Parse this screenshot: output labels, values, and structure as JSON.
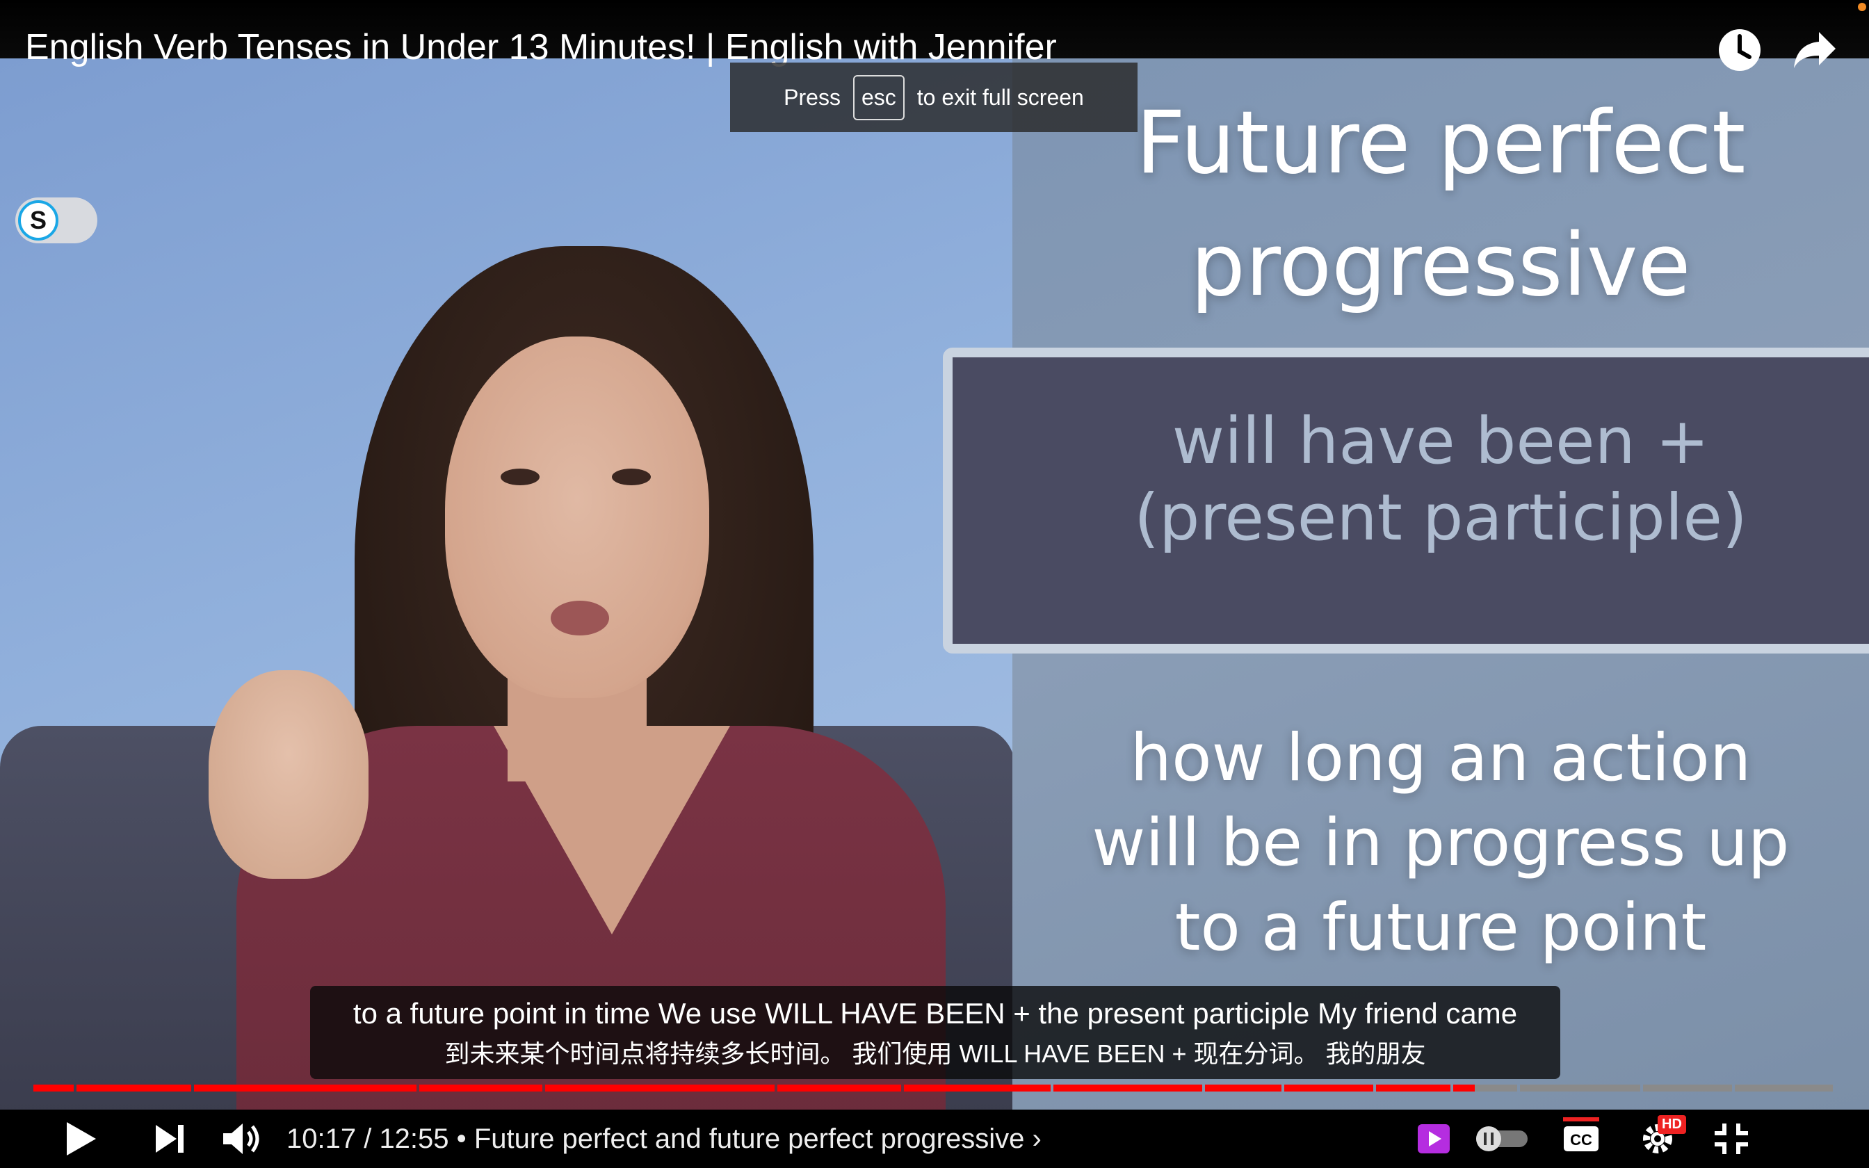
{
  "window": {
    "video_title": "English Verb Tenses in Under 13 Minutes! | English with Jennifer"
  },
  "fullscreen_notice": {
    "press": "Press",
    "key": "esc",
    "rest": "to exit full screen"
  },
  "slide": {
    "title_line1": "Future perfect",
    "title_line2": "progressive",
    "formula_line1": "will have been +",
    "formula_line2": "(present participle)",
    "desc_line1": "how long an action",
    "desc_line2": "will be in progress up",
    "desc_line3": "to a future point"
  },
  "extension_toggle": {
    "letter": "S"
  },
  "subtitles": {
    "english": "to a future point in time We use WILL HAVE BEEN + the present participle My friend came",
    "chinese": "到未来某个时间点将持续多长时间。 我们使用 WILL HAVE BEEN + 现在分词。 我的朋友"
  },
  "player": {
    "current_time": "10:17",
    "duration": "12:55",
    "time_display": "10:17 / 12:55",
    "separator": "•",
    "chapter": "Future perfect and future perfect progressive",
    "chapter_arrow": "›",
    "progress_fraction": 0.7997,
    "hd_badge": "HD",
    "cc_label": "CC"
  },
  "icons": {
    "watch_later": "clock-icon",
    "share": "share-icon",
    "play": "play-icon",
    "next": "next-icon",
    "volume": "volume-icon",
    "miniplayer": "miniplayer-icon",
    "autoplay": "autoplay-toggle",
    "captions": "cc-icon",
    "settings": "gear-icon",
    "exit_fullscreen": "exit-fullscreen-icon"
  },
  "colors": {
    "progress_played": "#ff0000",
    "progress_unplayed": "#8a8a8a",
    "hd_badge": "#e22222",
    "miniplayer_accent": "#b52de0",
    "slide_formula_box": "#4a4b62"
  }
}
